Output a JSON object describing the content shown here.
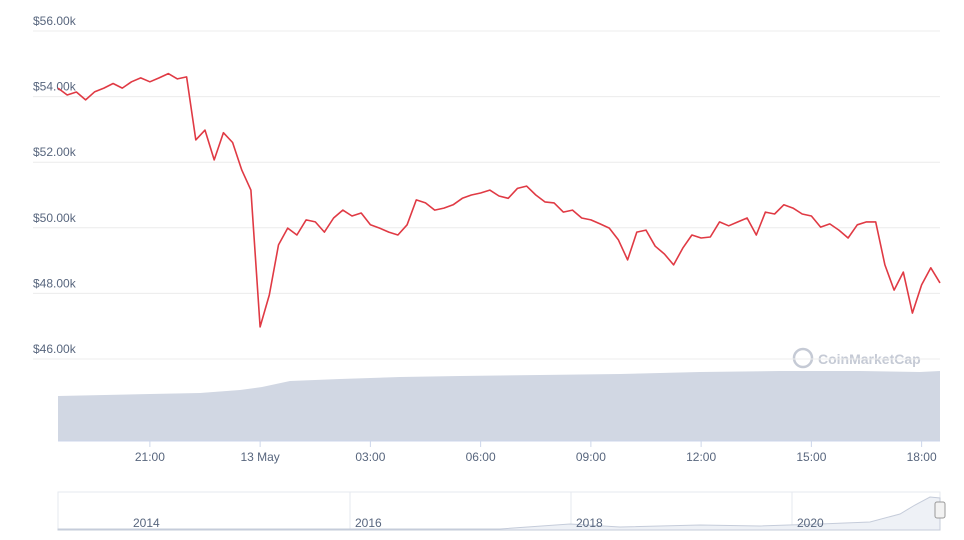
{
  "chart_data": {
    "type": "line",
    "watermark": "CoinMarketCap",
    "categories": [
      null,
      null,
      null,
      null,
      null,
      null,
      null,
      null,
      null,
      null,
      "21:00",
      null,
      null,
      null,
      null,
      null,
      null,
      null,
      null,
      null,
      null,
      null,
      "13 May",
      null,
      null,
      null,
      null,
      null,
      null,
      null,
      null,
      null,
      null,
      null,
      "03:00",
      null,
      null,
      null,
      null,
      null,
      null,
      null,
      null,
      null,
      null,
      null,
      "06:00",
      null,
      null,
      null,
      null,
      null,
      null,
      null,
      null,
      null,
      null,
      null,
      "09:00",
      null,
      null,
      null,
      null,
      null,
      null,
      null,
      null,
      null,
      null,
      null,
      "12:00",
      null,
      null,
      null,
      null,
      null,
      null,
      null,
      null,
      null,
      null,
      null,
      "15:00",
      null,
      null,
      null,
      null,
      null,
      null,
      null,
      null,
      null,
      null,
      null,
      "18:00",
      null,
      null
    ],
    "series": [
      {
        "color": "#e03a44",
        "values": [
          54260,
          54050,
          54140,
          53900,
          54150,
          54260,
          54400,
          54260,
          54450,
          54570,
          54450,
          54570,
          54700,
          54540,
          54600,
          52680,
          52980,
          52070,
          52900,
          52600,
          51760,
          51150,
          46980,
          47950,
          49480,
          49990,
          49780,
          50240,
          50180,
          49870,
          50300,
          50540,
          50360,
          50450,
          50090,
          49990,
          49870,
          49780,
          50090,
          50850,
          50760,
          50540,
          50600,
          50700,
          50900,
          51000,
          51060,
          51150,
          50970,
          50900,
          51200,
          51270,
          51000,
          50790,
          50760,
          50480,
          50540,
          50300,
          50240,
          50120,
          49990,
          49630,
          49020,
          49870,
          49930,
          49440,
          49200,
          48870,
          49380,
          49780,
          49690,
          49720,
          50180,
          50060,
          50180,
          50300,
          49780,
          50480,
          50420,
          50700,
          50600,
          50420,
          50360,
          50020,
          50120,
          49930,
          49690,
          50090,
          50180,
          50180,
          48870,
          48100,
          48650,
          47400,
          48260,
          48780,
          48320
        ]
      }
    ],
    "ylim": [
      46000,
      56000
    ],
    "yticks": [
      {
        "value": 46000,
        "label": "$46.00k"
      },
      {
        "value": 48000,
        "label": "$48.00k"
      },
      {
        "value": 50000,
        "label": "$50.00k"
      },
      {
        "value": 52000,
        "label": "$52.00k"
      },
      {
        "value": 54000,
        "label": "$54.00k"
      },
      {
        "value": 56000,
        "label": "$56.00k"
      }
    ],
    "grid": true,
    "navigator_labels": [
      "2014",
      "2016",
      "2018",
      "2020"
    ]
  }
}
